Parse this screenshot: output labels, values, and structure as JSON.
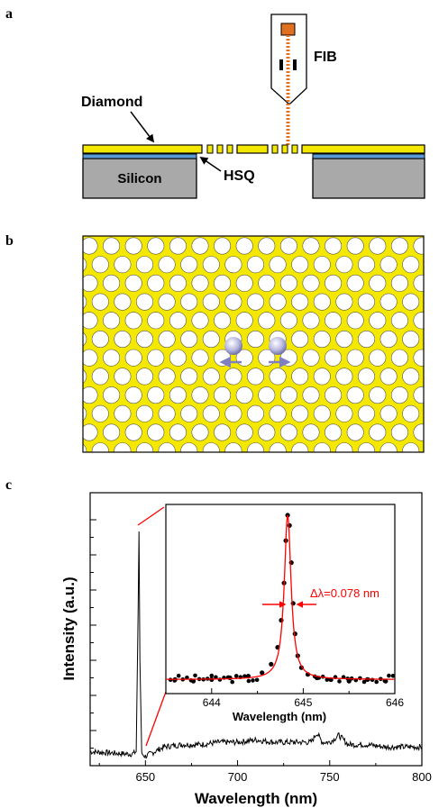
{
  "panels": {
    "a": {
      "label": "a",
      "texts": {
        "fib": "FIB",
        "diamond": "Diamond",
        "silicon": "Silicon",
        "hsq": "HSQ"
      }
    },
    "b": {
      "label": "b"
    },
    "c": {
      "label": "c"
    }
  },
  "colors": {
    "diamond": "#f5e800",
    "hsq": "#5b9bd5",
    "silicon": "#a9a9a9",
    "fib_source": "#e07020",
    "fib_beam": "#e07020",
    "cavity_dot": "#b8b8e0",
    "arrow": "#8080c0",
    "fit_line": "#ff0000",
    "annotation": "#ff0000"
  },
  "chart_data": [
    {
      "type": "line",
      "xlabel": "Wavelength (nm)",
      "ylabel": "Intensity (a.u.)",
      "xlim": [
        620,
        800
      ],
      "xticks": [
        650,
        700,
        750,
        800
      ],
      "series": [
        {
          "x": [
            620,
            630,
            640,
            643,
            645,
            646,
            646.5,
            647,
            648,
            650,
            655,
            660,
            670,
            680,
            690,
            700,
            710,
            720,
            730,
            740,
            743,
            746,
            750,
            755,
            760,
            770,
            780,
            790,
            800
          ],
          "y": [
            0.06,
            0.055,
            0.05,
            0.05,
            0.06,
            0.65,
            1.0,
            0.45,
            0.05,
            0.04,
            0.06,
            0.08,
            0.09,
            0.09,
            0.1,
            0.1,
            0.11,
            0.1,
            0.1,
            0.1,
            0.14,
            0.1,
            0.1,
            0.13,
            0.09,
            0.09,
            0.08,
            0.08,
            0.08
          ]
        }
      ]
    },
    {
      "type": "scatter",
      "xlabel": "Wavelength (nm)",
      "xlim": [
        643.5,
        646
      ],
      "xticks": [
        644,
        645,
        646
      ],
      "annotation": "Δλ=0.078 nm",
      "series": [
        {
          "x": [
            643.6,
            643.8,
            644.0,
            644.2,
            644.4,
            644.55,
            644.65,
            644.72,
            644.76,
            644.79,
            644.81,
            644.83,
            644.85,
            644.87,
            644.89,
            644.91,
            644.94,
            644.98,
            645.05,
            645.15,
            645.3,
            645.5,
            645.7,
            645.9
          ],
          "y": [
            0.03,
            0.02,
            0.03,
            0.04,
            0.05,
            0.07,
            0.12,
            0.22,
            0.38,
            0.6,
            0.85,
            1.0,
            0.94,
            0.72,
            0.48,
            0.3,
            0.17,
            0.1,
            0.06,
            0.04,
            0.03,
            0.02,
            0.03,
            0.02
          ]
        }
      ]
    }
  ]
}
